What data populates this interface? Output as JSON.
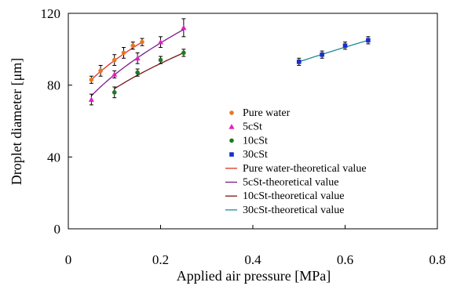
{
  "chart_data": {
    "type": "scatter",
    "xlabel": "Applied air pressure [MPa]",
    "ylabel": "Droplet diameter [μm]",
    "xlim": [
      0,
      0.8
    ],
    "ylim": [
      0,
      120
    ],
    "xticks": [
      0,
      0.2,
      0.4,
      0.6,
      0.8
    ],
    "xtick_labels": [
      "0",
      "0.2",
      "0.4",
      "0.6",
      "0.8"
    ],
    "yticks": [
      0,
      40,
      80,
      120
    ],
    "ytick_labels": [
      "0",
      "40",
      "80",
      "120"
    ],
    "grid": false,
    "legend_position": "center-right",
    "series": [
      {
        "name": "Pure water",
        "marker": "circle",
        "color": "#E87722",
        "points": [
          {
            "x": 0.05,
            "y": 83,
            "err": 2
          },
          {
            "x": 0.07,
            "y": 88,
            "err": 3
          },
          {
            "x": 0.1,
            "y": 94,
            "err": 3
          },
          {
            "x": 0.12,
            "y": 98,
            "err": 3
          },
          {
            "x": 0.14,
            "y": 102,
            "err": 2
          },
          {
            "x": 0.16,
            "y": 104,
            "err": 2
          }
        ]
      },
      {
        "name": "5cSt",
        "marker": "triangle",
        "color": "#E020C0",
        "points": [
          {
            "x": 0.05,
            "y": 72,
            "err": 3
          },
          {
            "x": 0.1,
            "y": 86,
            "err": 2
          },
          {
            "x": 0.15,
            "y": 95,
            "err": 3
          },
          {
            "x": 0.2,
            "y": 104,
            "err": 3
          },
          {
            "x": 0.25,
            "y": 112,
            "err": 5
          }
        ]
      },
      {
        "name": "10cSt",
        "marker": "circle",
        "color": "#1E7A1E",
        "points": [
          {
            "x": 0.1,
            "y": 76,
            "err": 3
          },
          {
            "x": 0.15,
            "y": 87,
            "err": 2
          },
          {
            "x": 0.2,
            "y": 94,
            "err": 2
          },
          {
            "x": 0.25,
            "y": 98,
            "err": 2
          }
        ]
      },
      {
        "name": "30cSt",
        "marker": "square",
        "color": "#1A2ECC",
        "points": [
          {
            "x": 0.5,
            "y": 93,
            "err": 2
          },
          {
            "x": 0.55,
            "y": 97,
            "err": 2
          },
          {
            "x": 0.6,
            "y": 102,
            "err": 2
          },
          {
            "x": 0.65,
            "y": 105,
            "err": 2
          }
        ]
      }
    ],
    "theoretical": [
      {
        "name": "Pure water-theoretical value",
        "color": "#E0302A",
        "x_range": [
          0.05,
          0.16
        ],
        "y_range": [
          83,
          104
        ]
      },
      {
        "name": "5cSt-theoretical value",
        "color": "#7B1A8C",
        "x_range": [
          0.05,
          0.25
        ],
        "y_range": [
          74,
          111
        ]
      },
      {
        "name": "10cSt-theoretical value",
        "color": "#7A1414",
        "x_range": [
          0.1,
          0.25
        ],
        "y_range": [
          78,
          98
        ]
      },
      {
        "name": "30cSt-theoretical value",
        "color": "#1E8A94",
        "x_range": [
          0.5,
          0.65
        ],
        "y_range": [
          93,
          105
        ]
      }
    ]
  }
}
